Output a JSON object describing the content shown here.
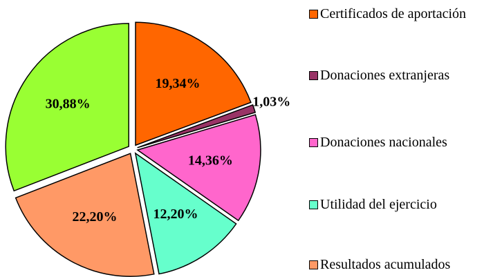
{
  "chart_data": {
    "type": "pie",
    "categories": [
      "Certificados de aportación",
      "Donaciones extranjeras",
      "Donaciones nacionales",
      "Utilidad del ejercicio",
      "Resultados acumulados",
      ""
    ],
    "values": [
      19.34,
      1.03,
      14.36,
      12.2,
      22.2,
      30.88
    ],
    "value_labels": [
      "19,34%",
      "1,03%",
      "14,36%",
      "12,20%",
      "22,20%",
      "30,88%"
    ],
    "colors": [
      "#ff6600",
      "#993366",
      "#ff66cc",
      "#66ffcc",
      "#ff9966",
      "#99ff33"
    ],
    "legend": "right"
  }
}
